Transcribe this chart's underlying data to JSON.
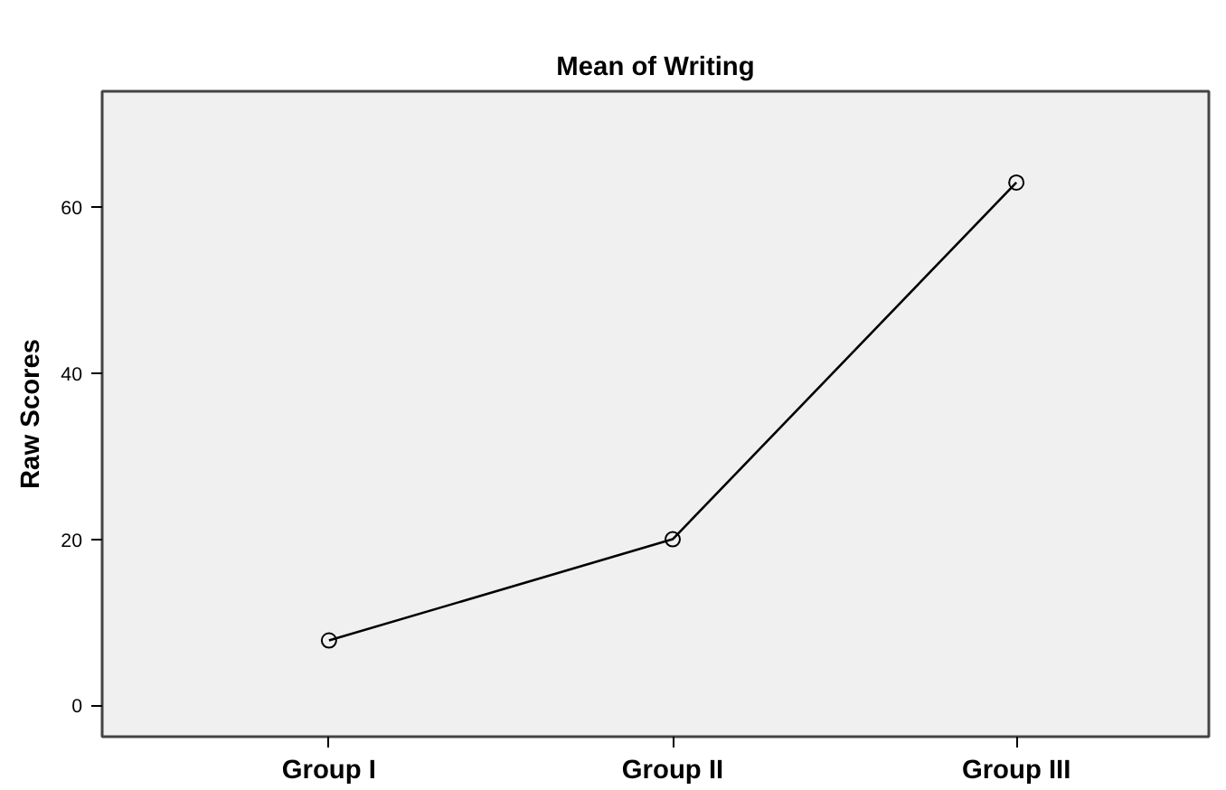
{
  "chart_data": {
    "type": "line",
    "title": "Mean of Writing",
    "ylabel": "Raw Scores",
    "categories": [
      "Group I",
      "Group II",
      "Group III"
    ],
    "series": [
      {
        "color": "#000000",
        "values": [
          7.8,
          20,
          63
        ]
      }
    ],
    "ylim": [
      -3.8,
      74
    ],
    "yticks": [
      0,
      20,
      40,
      60
    ],
    "marker": "circle",
    "line_style": "solid"
  }
}
